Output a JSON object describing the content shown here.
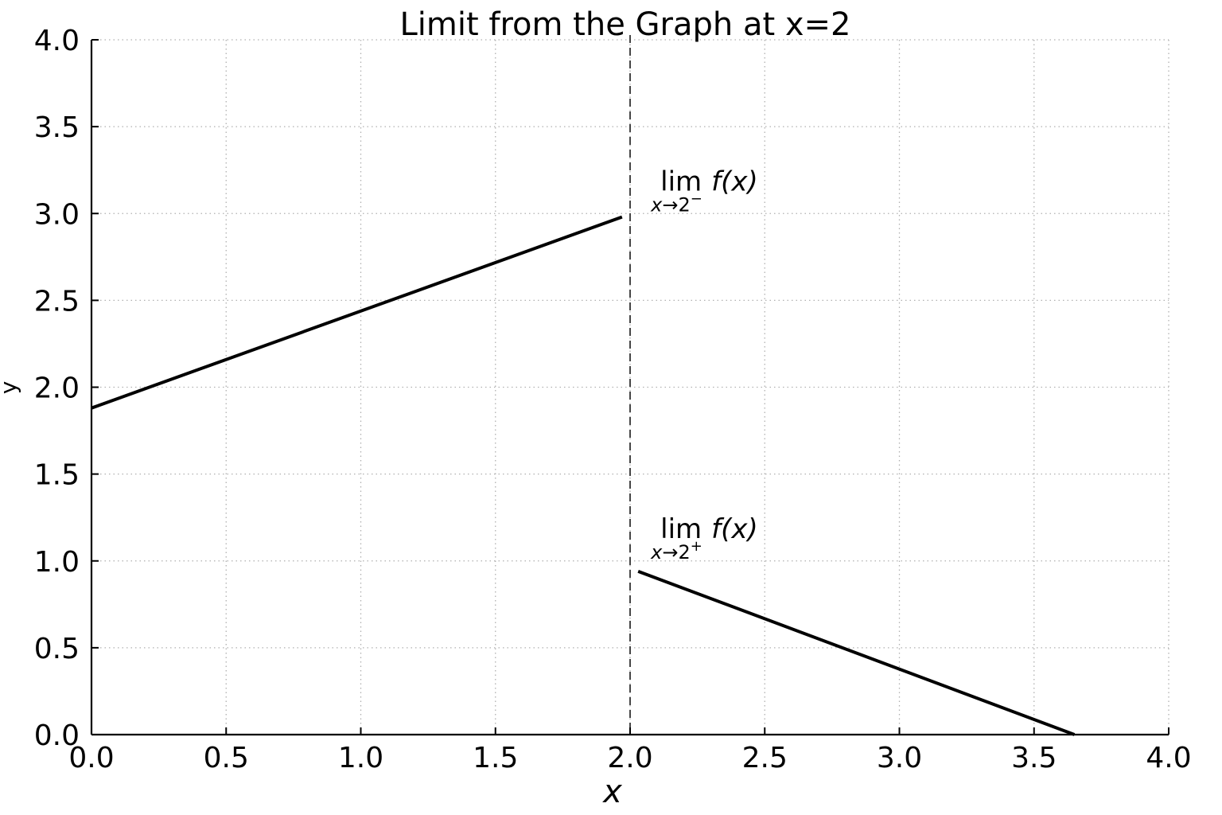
{
  "chart_data": {
    "type": "line",
    "title": "Limit from the Graph at x=2",
    "xlabel": "x",
    "ylabel": "y",
    "xlim": [
      0,
      4
    ],
    "ylim": [
      0,
      4
    ],
    "xticks": [
      0,
      0.5,
      1,
      1.5,
      2,
      2.5,
      3,
      3.5,
      4
    ],
    "yticks": [
      0,
      0.5,
      1,
      1.5,
      2,
      2.5,
      3,
      3.5,
      4
    ],
    "xtick_labels": [
      "0.0",
      "0.5",
      "1.0",
      "1.5",
      "2.0",
      "2.5",
      "3.0",
      "3.5",
      "4.0"
    ],
    "ytick_labels": [
      "0.0",
      "0.5",
      "1.0",
      "1.5",
      "2.0",
      "2.5",
      "3.0",
      "3.5",
      "4.0"
    ],
    "grid": true,
    "series": [
      {
        "x": [
          0.0,
          1.97
        ],
        "y": [
          1.88,
          2.98
        ]
      },
      {
        "x": [
          2.03,
          3.65
        ],
        "y": [
          0.94,
          0.0
        ]
      }
    ],
    "vline": {
      "x": 2.0,
      "style": "dashed"
    },
    "annotations": [
      {
        "lim": "lim",
        "fx": "f(x)",
        "sub_var": "x",
        "sub_arrow": "→2",
        "sub_sign": "−",
        "x": 2.03,
        "y": 3.05
      },
      {
        "lim": "lim",
        "fx": "f(x)",
        "sub_var": "x",
        "sub_arrow": "→2",
        "sub_sign": "+",
        "x": 2.03,
        "y": 1.05
      }
    ],
    "colors": {
      "line": "#000000",
      "grid": "#b0b0b0",
      "vline": "#333333"
    }
  }
}
